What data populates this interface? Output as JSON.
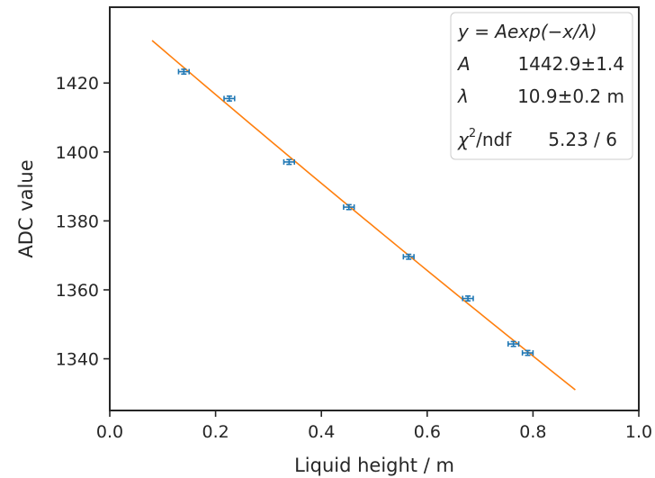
{
  "chart_data": {
    "type": "scatter",
    "xlabel": "Liquid height / m",
    "ylabel": "ADC value",
    "xlim": [
      0.0,
      1.0
    ],
    "ylim": [
      1325,
      1442
    ],
    "xticks": [
      0.0,
      0.2,
      0.4,
      0.6,
      0.8,
      1.0
    ],
    "xtick_labels": [
      "0.0",
      "0.2",
      "0.4",
      "0.6",
      "0.8",
      "1.0"
    ],
    "yticks": [
      1340,
      1360,
      1380,
      1400,
      1420
    ],
    "ytick_labels": [
      "1340",
      "1360",
      "1380",
      "1400",
      "1420"
    ],
    "grid": false,
    "series": [
      {
        "kind": "errorbar",
        "color": "#1f77b4",
        "points": [
          {
            "x": 0.14,
            "y": 1423.3,
            "xerr": 0.01,
            "yerr": 0.7
          },
          {
            "x": 0.226,
            "y": 1415.5,
            "xerr": 0.01,
            "yerr": 0.7
          },
          {
            "x": 0.339,
            "y": 1397.1,
            "xerr": 0.01,
            "yerr": 0.7
          },
          {
            "x": 0.452,
            "y": 1384.0,
            "xerr": 0.01,
            "yerr": 0.7
          },
          {
            "x": 0.565,
            "y": 1369.6,
            "xerr": 0.01,
            "yerr": 0.7
          },
          {
            "x": 0.677,
            "y": 1357.5,
            "xerr": 0.01,
            "yerr": 0.7
          },
          {
            "x": 0.763,
            "y": 1344.3,
            "xerr": 0.01,
            "yerr": 0.7
          },
          {
            "x": 0.79,
            "y": 1341.7,
            "xerr": 0.01,
            "yerr": 0.7
          }
        ]
      },
      {
        "kind": "fit",
        "color": "#ff7f0e",
        "function": "exp",
        "A": 1442.9,
        "lambda": 10.9,
        "x_range": [
          0.08,
          0.88
        ]
      }
    ],
    "legend": {
      "position": "top-right",
      "formula": "y = Aexp(−x/λ)",
      "param_a_label": "A",
      "param_a_value": "1442.9±1.4",
      "param_lambda_label": "λ",
      "param_lambda_value": "10.9±0.2 m",
      "chi_label_symbol": "χ",
      "chi_label_power": "2",
      "chi_label_rest": "/ndf",
      "chi_value": "5.23 / 6"
    }
  }
}
